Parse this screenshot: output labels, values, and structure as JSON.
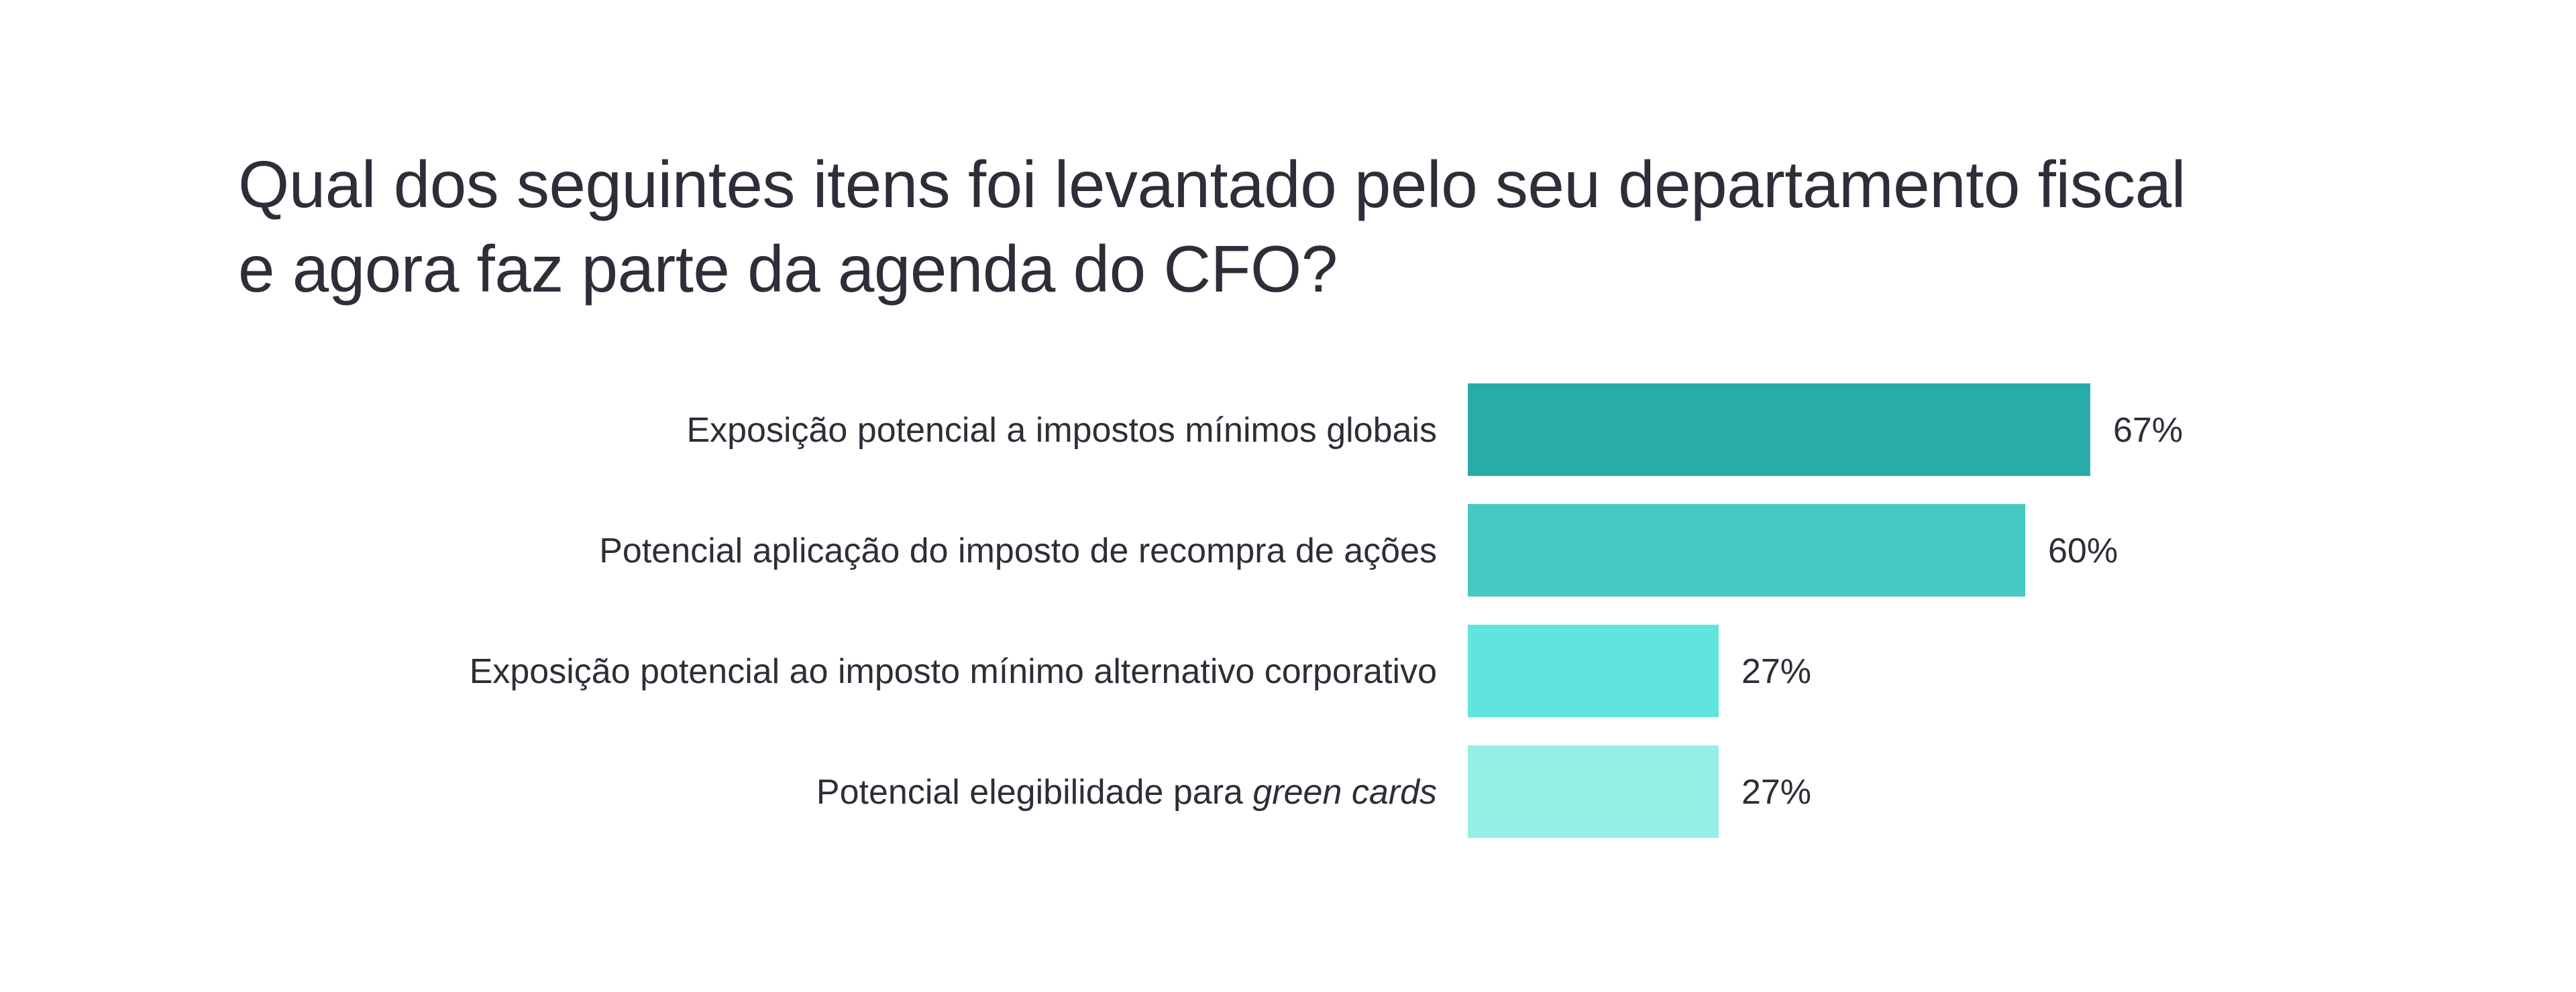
{
  "title": {
    "line1": "Qual dos seguintes itens foi levantado pelo seu departamento fiscal",
    "line2": "e agora faz parte da agenda do CFO?"
  },
  "chart_data": {
    "type": "bar",
    "orientation": "horizontal",
    "title": "Qual dos seguintes itens foi levantado pelo seu departamento fiscal e agora faz parte da agenda do CFO?",
    "categories": [
      {
        "text": "Exposição potencial a impostos mínimos globais",
        "italic_suffix": ""
      },
      {
        "text": "Potencial aplicação do imposto de recompra de ações",
        "italic_suffix": ""
      },
      {
        "text": "Exposição potencial ao imposto mínimo alternativo corporativo",
        "italic_suffix": ""
      },
      {
        "text": "Potencial elegibilidade para ",
        "italic_suffix": "green cards"
      }
    ],
    "values": [
      67,
      60,
      27,
      27
    ],
    "value_labels": [
      "67%",
      "60%",
      "27%",
      "27%"
    ],
    "bar_colors": [
      "#27aca9",
      "#44c9c3",
      "#60e4de",
      "#95efe4"
    ],
    "xlim": [
      0,
      100
    ],
    "grid": false,
    "legend": "none"
  }
}
